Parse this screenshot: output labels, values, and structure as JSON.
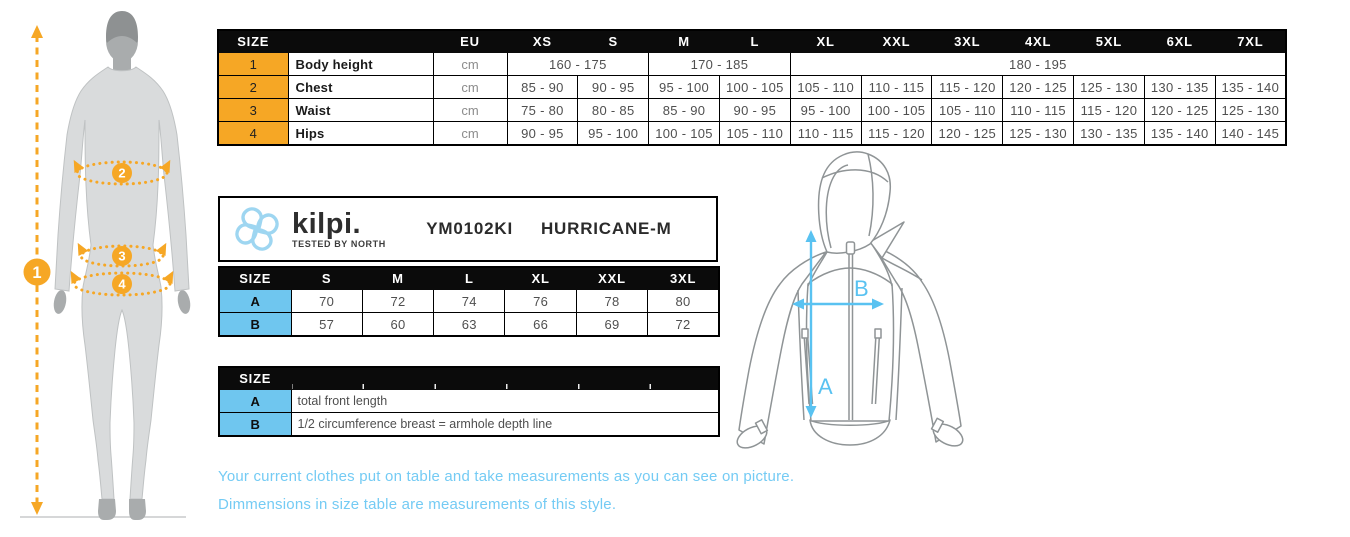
{
  "brand": {
    "wordmark": "kilpi.",
    "tagline": "TESTED BY NORTH"
  },
  "product": {
    "code": "YM0102KI",
    "name": "HURRICANE-M"
  },
  "colors": {
    "orange": "#F6A725",
    "blue": "#6FC6EF",
    "header_bg": "#0B0B0B",
    "note_text": "#74CBF4",
    "arrow_blue": "#59C2F1",
    "figure_gray": "#D9DBDC",
    "figure_dark_gray": "#A9ACAD"
  },
  "body_size_table": {
    "columns": [
      "SIZE",
      "",
      "EU",
      "XS",
      "S",
      "M",
      "L",
      "XL",
      "XXL",
      "3XL",
      "4XL",
      "5XL",
      "6XL",
      "7XL"
    ],
    "rows": [
      {
        "num": "1",
        "label": "Body height",
        "unit": "cm",
        "cells": [
          {
            "value": "160 - 175",
            "span": 2
          },
          {
            "value": "170 - 185",
            "span": 2
          },
          {
            "value": "180 - 195",
            "span": 7
          }
        ]
      },
      {
        "num": "2",
        "label": "Chest",
        "unit": "cm",
        "cells": [
          {
            "value": "85 - 90"
          },
          {
            "value": "90 - 95"
          },
          {
            "value": "95 - 100"
          },
          {
            "value": "100 - 105"
          },
          {
            "value": "105 - 110"
          },
          {
            "value": "110 - 115"
          },
          {
            "value": "115 - 120"
          },
          {
            "value": "120 - 125"
          },
          {
            "value": "125 - 130"
          },
          {
            "value": "130 - 135"
          },
          {
            "value": "135 - 140"
          }
        ]
      },
      {
        "num": "3",
        "label": "Waist",
        "unit": "cm",
        "cells": [
          {
            "value": "75 - 80"
          },
          {
            "value": "80 - 85"
          },
          {
            "value": "85 - 90"
          },
          {
            "value": "90 - 95"
          },
          {
            "value": "95 - 100"
          },
          {
            "value": "100 - 105"
          },
          {
            "value": "105 - 110"
          },
          {
            "value": "110 - 115"
          },
          {
            "value": "115 - 120"
          },
          {
            "value": "120 - 125"
          },
          {
            "value": "125 - 130"
          }
        ]
      },
      {
        "num": "4",
        "label": "Hips",
        "unit": "cm",
        "cells": [
          {
            "value": "90 - 95"
          },
          {
            "value": "95 - 100"
          },
          {
            "value": "100 - 105"
          },
          {
            "value": "105 - 110"
          },
          {
            "value": "110 - 115"
          },
          {
            "value": "115 - 120"
          },
          {
            "value": "120 - 125"
          },
          {
            "value": "125 - 130"
          },
          {
            "value": "130 - 135"
          },
          {
            "value": "135 - 140"
          },
          {
            "value": "140 - 145"
          }
        ]
      }
    ]
  },
  "product_size_table": {
    "columns": [
      "SIZE",
      "S",
      "M",
      "L",
      "XL",
      "XXL",
      "3XL"
    ],
    "rows": [
      {
        "key": "A",
        "values": [
          "70",
          "72",
          "74",
          "76",
          "78",
          "80"
        ]
      },
      {
        "key": "B",
        "values": [
          "57",
          "60",
          "63",
          "66",
          "69",
          "72"
        ]
      }
    ]
  },
  "legend_table": {
    "header": "SIZE",
    "rows": [
      {
        "key": "A",
        "description": "total front length"
      },
      {
        "key": "B",
        "description": "1/2 circumference breast = armhole depth line"
      }
    ]
  },
  "figure": {
    "markers": [
      "1",
      "2",
      "3",
      "4"
    ]
  },
  "jacket": {
    "front_length_label": "A",
    "breast_label": "B"
  },
  "notes": [
    "Your current clothes put on table and take measurements as you can see on picture.",
    "Dimmensions in size table are measurements of this style."
  ]
}
